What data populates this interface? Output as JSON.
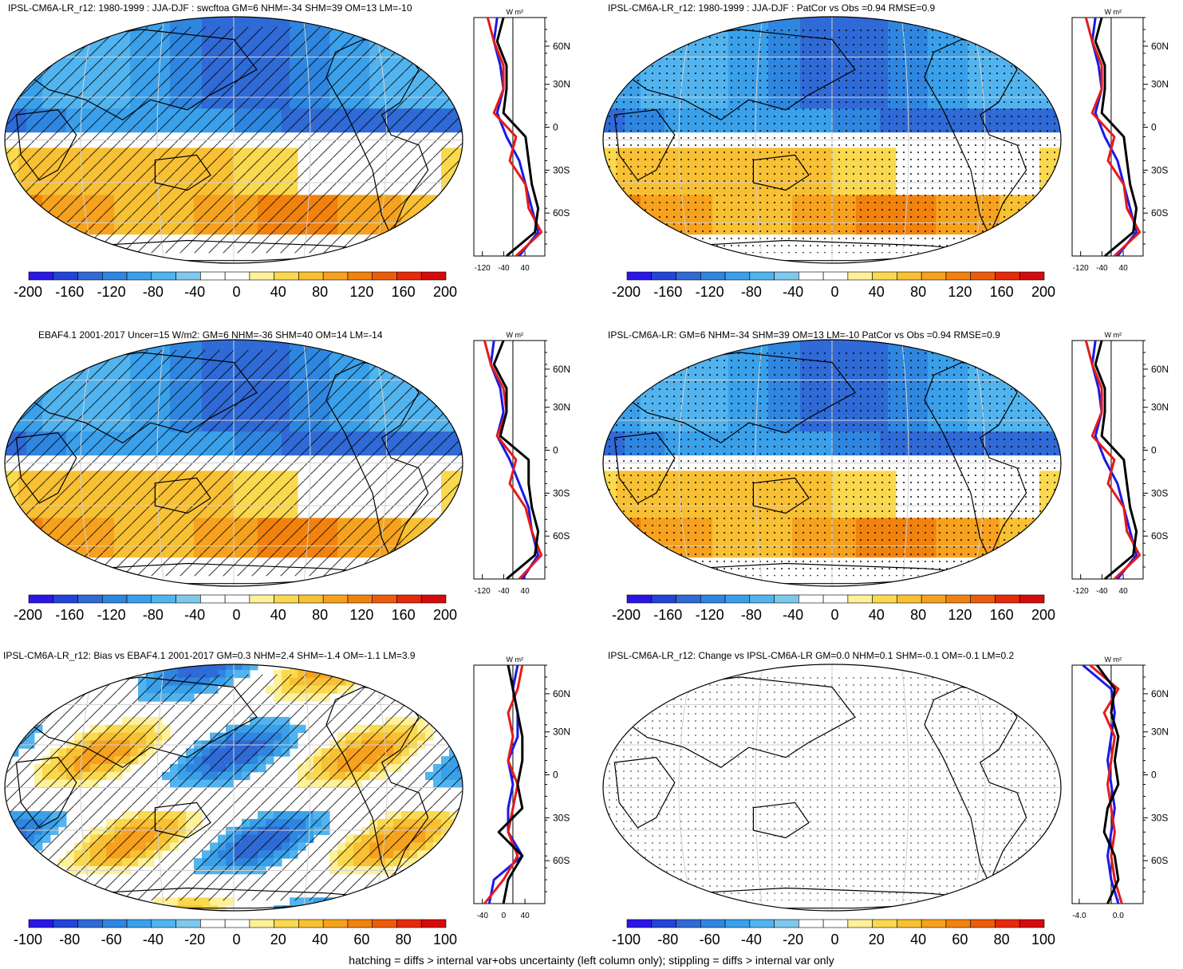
{
  "colors": {
    "scale": [
      "#2a16e8",
      "#2344d8",
      "#2f6ad6",
      "#2f86e0",
      "#3aa0ea",
      "#52b4ef",
      "#7ec8ee",
      "#ffffff",
      "#ffffff",
      "#fff09a",
      "#fbd94e",
      "#f8c033",
      "#f6a21e",
      "#f2820e",
      "#ee5c0b",
      "#e82a0b",
      "#d60a0a"
    ],
    "land_line": "#000000",
    "grid": "#d0d0d0",
    "model_line": "#000000",
    "north_line": "#1a1ae6",
    "south_line": "#e61a1a"
  },
  "footer": "hatching = diffs > internal var+obs uncertainty (left column only); stippling = diffs > internal var only",
  "panels": [
    {
      "title": "IPSL-CM6A-LR_r12: 1980-1999 : JJA-DJF : swcftoa GM=6 NHM=-34 SHM=39 OM=13 LM=-10",
      "colorbar_labels": [
        "-200",
        "-160",
        "-120",
        "-80",
        "-40",
        "0",
        "40",
        "80",
        "120",
        "160",
        "200"
      ],
      "zonal": {
        "unit": "W m²",
        "lat_labels": [
          "60N",
          "30N",
          "0",
          "30S",
          "60S"
        ],
        "x_ticks": [
          "-120",
          "-40",
          "40"
        ]
      },
      "pattern": "hatch"
    },
    {
      "title": "IPSL-CM6A-LR_r12: 1980-1999 : JJA-DJF : PatCor vs Obs =0.94 RMSE=0.9",
      "colorbar_labels": [
        "-200",
        "-160",
        "-120",
        "-80",
        "-40",
        "0",
        "40",
        "80",
        "120",
        "160",
        "200"
      ],
      "zonal": {
        "unit": "W m²",
        "lat_labels": [
          "60N",
          "30N",
          "0",
          "30S",
          "60S"
        ],
        "x_ticks": [
          "-120",
          "-40",
          "40"
        ]
      },
      "pattern": "stipple"
    },
    {
      "title": "EBAF4.1 2001-2017 Uncer=15 W/m2: GM=6 NHM=-36 SHM=40 OM=14 LM=-14",
      "colorbar_labels": [
        "-200",
        "-160",
        "-120",
        "-80",
        "-40",
        "0",
        "40",
        "80",
        "120",
        "160",
        "200"
      ],
      "zonal": {
        "unit": "W m²",
        "lat_labels": [
          "60N",
          "30N",
          "0",
          "30S",
          "60S"
        ],
        "x_ticks": [
          "-120",
          "-40",
          "40"
        ]
      },
      "pattern": "hatch"
    },
    {
      "title": "IPSL-CM6A-LR: GM=6 NHM=-34 SHM=39 OM=13 LM=-10 PatCor vs Obs =0.94 RMSE=0.9",
      "colorbar_labels": [
        "-200",
        "-160",
        "-120",
        "-80",
        "-40",
        "0",
        "40",
        "80",
        "120",
        "160",
        "200"
      ],
      "zonal": {
        "unit": "W m²",
        "lat_labels": [
          "60N",
          "30N",
          "0",
          "30S",
          "60S"
        ],
        "x_ticks": [
          "-120",
          "-40",
          "40"
        ]
      },
      "pattern": "stipple"
    },
    {
      "title": "IPSL-CM6A-LR_r12: Bias vs EBAF4.1 2001-2017 GM=0.3 NHM=2.4 SHM=-1.4 OM=-1.1 LM=3.9",
      "colorbar_labels": [
        "-100",
        "-80",
        "-60",
        "-40",
        "-20",
        "0",
        "20",
        "40",
        "60",
        "80",
        "100"
      ],
      "zonal": {
        "unit": "W m²",
        "lat_labels": [
          "60N",
          "30N",
          "0",
          "30S",
          "60S"
        ],
        "x_ticks": [
          "-40",
          "0",
          "40"
        ]
      },
      "pattern": "hatch"
    },
    {
      "title": "IPSL-CM6A-LR_r12: Change vs IPSL-CM6A-LR GM=0.0 NHM=0.1 SHM=-0.1 OM=-0.1 LM=0.2",
      "colorbar_labels": [
        "-100",
        "-80",
        "-60",
        "-40",
        "-20",
        "0",
        "20",
        "40",
        "60",
        "80",
        "100"
      ],
      "zonal": {
        "unit": "W m²",
        "lat_labels": [
          "60N",
          "30N",
          "0",
          "30S",
          "60S"
        ],
        "x_ticks": [
          "-4.0",
          "0.0"
        ]
      },
      "pattern": "stipple-sparse"
    }
  ],
  "chart_data": [
    {
      "type": "heatmap",
      "title": "IPSL-CM6A-LR_r12: 1980-1999 : JJA-DJF : swcftoa GM=6 NHM=-34 SHM=39 OM=13 LM=-10",
      "colorbar": [
        -200,
        -160,
        -120,
        -80,
        -40,
        0,
        40,
        80,
        120,
        160,
        200
      ],
      "zonal_profile": {
        "lat": [
          75,
          60,
          45,
          30,
          15,
          0,
          -15,
          -30,
          -45,
          -60,
          -70
        ],
        "series": [
          {
            "values": [
              -25,
              -30,
              -20,
              -15,
              -25,
              -10,
              10,
              20,
              30,
              40,
              10
            ]
          },
          {
            "values": [
              -40,
              -30,
              -15,
              -15,
              -30,
              5,
              -5,
              20,
              25,
              45,
              5
            ]
          },
          {
            "values": [
              -15,
              -25,
              -10,
              -10,
              -15,
              20,
              25,
              30,
              40,
              35,
              -10
            ]
          }
        ]
      }
    },
    {
      "type": "heatmap",
      "title": "IPSL-CM6A-LR_r12: 1980-1999 : JJA-DJF : PatCor vs Obs =0.94 RMSE=0.9",
      "colorbar": [
        -200,
        -160,
        -120,
        -80,
        -40,
        0,
        40,
        80,
        120,
        160,
        200
      ],
      "zonal_profile": {
        "lat": [
          75,
          60,
          45,
          30,
          15,
          0,
          -15,
          -30,
          -45,
          -60,
          -70
        ],
        "series": [
          {
            "values": [
              -25,
              -30,
              -20,
              -15,
              -25,
              -10,
              10,
              20,
              30,
              40,
              10
            ]
          },
          {
            "values": [
              -40,
              -30,
              -15,
              -15,
              -30,
              5,
              -5,
              20,
              25,
              45,
              5
            ]
          },
          {
            "values": [
              -15,
              -25,
              -10,
              -10,
              -15,
              20,
              25,
              30,
              40,
              35,
              -10
            ]
          }
        ]
      }
    },
    {
      "type": "heatmap",
      "title": "EBAF4.1 2001-2017 Uncer=15 W/m2: GM=6 NHM=-36 SHM=40 OM=14 LM=-14",
      "colorbar": [
        -200,
        -160,
        -120,
        -80,
        -40,
        0,
        40,
        80,
        120,
        160,
        200
      ],
      "zonal_profile": {
        "lat": [
          75,
          60,
          45,
          30,
          15,
          0,
          -15,
          -30,
          -45,
          -60,
          -70
        ],
        "series": [
          {
            "values": [
              -30,
              -35,
              -20,
              -15,
              -25,
              -5,
              10,
              25,
              30,
              40,
              15
            ]
          },
          {
            "values": [
              -45,
              -35,
              -15,
              -10,
              -25,
              5,
              -5,
              20,
              30,
              45,
              10
            ]
          },
          {
            "values": [
              -15,
              -30,
              -10,
              -10,
              -20,
              25,
              25,
              30,
              40,
              35,
              -10
            ]
          }
        ]
      }
    },
    {
      "type": "heatmap",
      "title": "IPSL-CM6A-LR: GM=6 NHM=-34 SHM=39 OM=13 LM=-10 PatCor vs Obs =0.94 RMSE=0.9",
      "colorbar": [
        -200,
        -160,
        -120,
        -80,
        -40,
        0,
        40,
        80,
        120,
        160,
        200
      ],
      "zonal_profile": {
        "lat": [
          75,
          60,
          45,
          30,
          15,
          0,
          -15,
          -30,
          -45,
          -60,
          -70
        ],
        "series": [
          {
            "values": [
              -25,
              -30,
              -20,
              -15,
              -25,
              -10,
              10,
              20,
              30,
              40,
              10
            ]
          },
          {
            "values": [
              -40,
              -30,
              -15,
              -15,
              -30,
              5,
              -5,
              20,
              25,
              45,
              5
            ]
          },
          {
            "values": [
              -15,
              -25,
              -10,
              -10,
              -15,
              20,
              25,
              30,
              40,
              35,
              -10
            ]
          }
        ]
      }
    },
    {
      "type": "heatmap",
      "title": "IPSL-CM6A-LR_r12: Bias vs EBAF4.1 2001-2017 GM=0.3 NHM=2.4 SHM=-1.4 OM=-1.1 LM=3.9",
      "colorbar": [
        -100,
        -80,
        -60,
        -40,
        -20,
        0,
        20,
        40,
        60,
        80,
        100
      ],
      "zonal_profile": {
        "lat": [
          75,
          60,
          45,
          30,
          15,
          0,
          -15,
          -30,
          -45,
          -60,
          -70
        ],
        "series": [
          {
            "values": [
              5,
              0,
              5,
              5,
              -5,
              0,
              -5,
              -5,
              10,
              -20,
              -25
            ]
          },
          {
            "values": [
              10,
              5,
              -5,
              0,
              -5,
              5,
              0,
              -5,
              5,
              -10,
              -30
            ]
          },
          {
            "values": [
              -5,
              0,
              5,
              10,
              10,
              5,
              10,
              -15,
              10,
              -5,
              -10
            ]
          }
        ]
      }
    },
    {
      "type": "heatmap",
      "title": "IPSL-CM6A-LR_r12: Change vs IPSL-CM6A-LR GM=0.0 NHM=0.1 SHM=-0.1 OM=-0.1 LM=0.2",
      "colorbar": [
        -100,
        -80,
        -60,
        -40,
        -20,
        0,
        20,
        40,
        60,
        80,
        100
      ],
      "zonal_profile": {
        "lat": [
          75,
          60,
          45,
          30,
          15,
          0,
          -15,
          -30,
          -45,
          -60,
          -70
        ],
        "series": [
          {
            "values": [
              -4,
              0,
              0.5,
              0,
              -0.5,
              0,
              0.5,
              0,
              -0.5,
              0,
              1
            ]
          },
          {
            "values": [
              -3,
              1,
              -1,
              0.5,
              0,
              -0.5,
              0,
              0.5,
              0,
              0.5,
              1.5
            ]
          },
          {
            "values": [
              -2,
              0.5,
              0,
              1,
              0.5,
              1,
              -0.5,
              -1,
              0.5,
              1,
              -0.5
            ]
          }
        ]
      }
    }
  ]
}
